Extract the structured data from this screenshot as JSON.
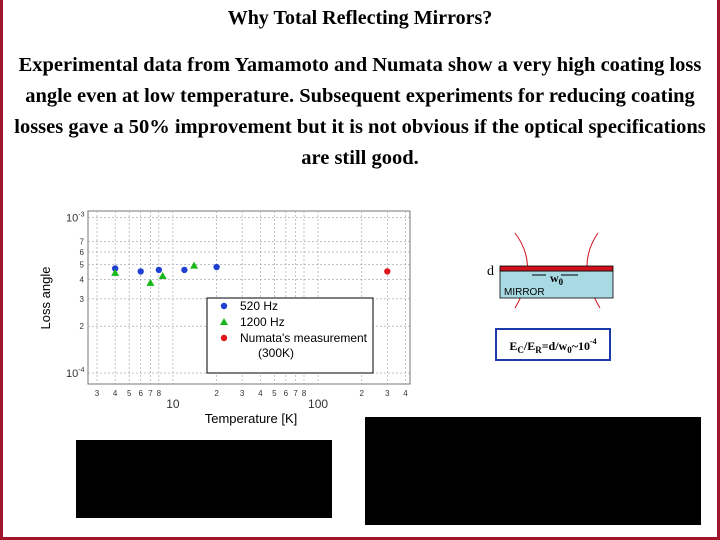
{
  "slide": {
    "title": "Why Total Reflecting Mirrors?",
    "body": "Experimental data from Yamamoto and Numata show a very high coating loss angle even at low temperature. Subsequent experiments for reducing coating losses gave a 50% improvement but it is not obvious if the optical specifications are still good.",
    "frame_color": "#a0162a"
  },
  "chart_data": {
    "type": "scatter",
    "xlabel": "Temperature [K]",
    "ylabel": "Loss angle",
    "xscale": "log",
    "yscale": "log",
    "xlim": [
      2.6,
      430
    ],
    "ylim": [
      8.5e-05,
      0.0011
    ],
    "grid": true,
    "legend_position": "center-right",
    "x_tick_labels": [
      "3",
      "4",
      "5",
      "6",
      "7",
      "8",
      "10",
      "2",
      "3",
      "4",
      "5",
      "6",
      "7",
      "8",
      "100",
      "2",
      "3",
      "4"
    ],
    "y_tick_labels": [
      "10-3",
      "7",
      "6",
      "5",
      "4",
      "3",
      "2",
      "10-4"
    ],
    "series": [
      {
        "name": "520 Hz",
        "marker": "circle",
        "color": "#1f3fd0",
        "x": [
          4,
          6,
          8,
          12,
          20
        ],
        "y": [
          0.00047,
          0.00045,
          0.00046,
          0.00046,
          0.00048
        ]
      },
      {
        "name": "1200 Hz",
        "marker": "triangle",
        "color": "#16b81a",
        "x": [
          4,
          7,
          8.5,
          14
        ],
        "y": [
          0.00044,
          0.00038,
          0.00042,
          0.00049
        ]
      },
      {
        "name": "Numata's measurement (300K)",
        "marker": "circle",
        "color": "#e0161f",
        "x": [
          300
        ],
        "y": [
          0.00045
        ]
      }
    ]
  },
  "diagram": {
    "d_label": "d",
    "w_label": "w",
    "w_sub": "0",
    "mirror_label": "MIRROR",
    "coating_color": "#d0101c",
    "substrate_color": "#a8dae4",
    "formula": {
      "e1": "E",
      "s1": "C",
      "e2": "/E",
      "s2": "R",
      "mid": "=d/w",
      "s3": "0",
      "tail": "~10",
      "sup": "-4"
    }
  }
}
